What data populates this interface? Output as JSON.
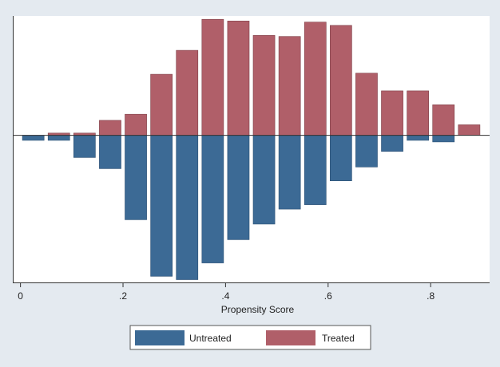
{
  "chart_data": {
    "type": "bar",
    "subtype": "mirrored histogram",
    "title": "",
    "xlabel": "Propensity Score",
    "ylabel": "",
    "xlim": [
      -0.015,
      0.915
    ],
    "ylim": [
      -2.65,
      2.15
    ],
    "x_ticks": [
      0,
      0.2,
      0.4,
      0.6,
      0.8
    ],
    "x_tick_labels": [
      "0",
      ".2",
      ".4",
      ".6",
      ".8"
    ],
    "y_axis_labels_shown": false,
    "grid": false,
    "bin_width": 0.05,
    "bin_centers": [
      0.025,
      0.075,
      0.125,
      0.175,
      0.225,
      0.275,
      0.325,
      0.375,
      0.425,
      0.475,
      0.525,
      0.575,
      0.625,
      0.675,
      0.725,
      0.775,
      0.825,
      0.875
    ],
    "series": [
      {
        "name": "Untreated",
        "color": "#3c6a95",
        "direction": "down",
        "values": [
          -0.09,
          -0.09,
          -0.4,
          -0.6,
          -1.52,
          -2.54,
          -2.6,
          -2.3,
          -1.88,
          -1.6,
          -1.33,
          -1.25,
          -0.82,
          -0.57,
          -0.29,
          -0.09,
          -0.12,
          0
        ]
      },
      {
        "name": "Treated",
        "color": "#b05f69",
        "direction": "up",
        "values": [
          0,
          0.04,
          0.04,
          0.27,
          0.38,
          1.1,
          1.53,
          2.09,
          2.06,
          1.8,
          1.78,
          2.04,
          1.98,
          1.12,
          0.8,
          0.8,
          0.55,
          0.19
        ]
      }
    ],
    "legend": {
      "placement": "bottom-center",
      "entries": [
        "Untreated",
        "Treated"
      ]
    }
  },
  "colors": {
    "page_background": "#e4eaf0",
    "plot_background": "#ffffff",
    "untreated": "#3c6a95",
    "treated": "#b05f69",
    "bar_edge_untreated": "#2b4f73",
    "bar_edge_treated": "#7e3f48",
    "axis": "#333333"
  }
}
